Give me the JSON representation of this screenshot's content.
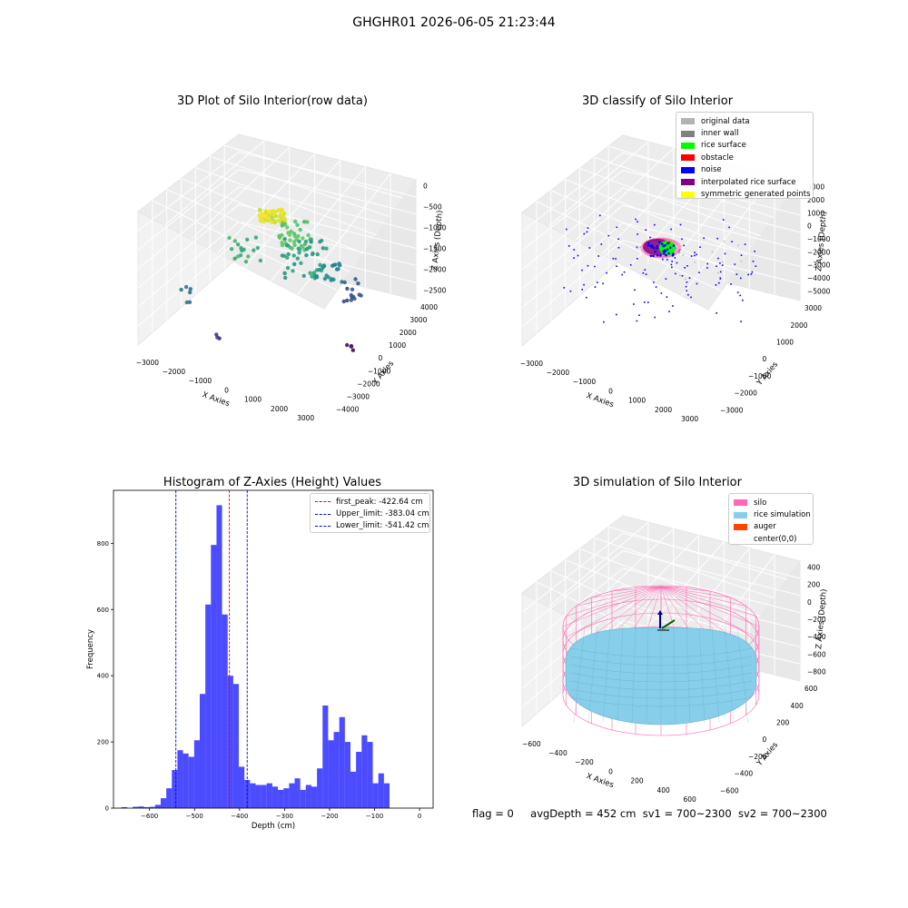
{
  "suptitle": "GHGHR01 2026-06-05 21:23:44",
  "footer": {
    "flag": "flag = 0",
    "avg_depth": "avgDepth = 452 cm",
    "sv1": "sv1 = 700~2300",
    "sv2": "sv2 = 700~2300"
  },
  "chart_data": [
    {
      "type": "scatter",
      "title": "3D Plot of Silo Interior(row data)",
      "xlabel": "X Axies",
      "ylabel": "Y Axies",
      "zlabel": "Z Axies (Depth)",
      "x_ticks": [
        "−3000",
        "−2000",
        "−1000",
        "0",
        "1000",
        "2000",
        "3000"
      ],
      "y_ticks": [
        "−4000",
        "−3000",
        "−2000",
        "−1000",
        "0",
        "1000",
        "2000",
        "3000",
        "4000"
      ],
      "z_ticks": [
        "−2500",
        "−2000",
        "−1500",
        "−1000",
        "−500",
        "0"
      ],
      "xlim": [
        -3500,
        3500
      ],
      "ylim": [
        -4200,
        4200
      ],
      "zlim": [
        -2900,
        150
      ],
      "colormap": "viridis"
    },
    {
      "type": "scatter",
      "title": "3D classify of Silo Interior",
      "xlabel": "X Axies",
      "ylabel": "Y Axies",
      "zlabel": "Z Axies (Depth)",
      "x_ticks": [
        "−3000",
        "−2000",
        "−1000",
        "0",
        "1000",
        "2000",
        "3000"
      ],
      "y_ticks": [
        "−3000",
        "−2000",
        "−1000",
        "0",
        "1000",
        "2000",
        "3000"
      ],
      "z_ticks": [
        "−5000",
        "−4000",
        "−3000",
        "−2000",
        "−1000",
        "0",
        "1000",
        "2000",
        "3000"
      ],
      "xlim": [
        -3500,
        3500
      ],
      "ylim": [
        -3500,
        3500
      ],
      "zlim": [
        -5000,
        3000
      ],
      "legend": [
        {
          "label": "original data",
          "color": "#b3b3b3"
        },
        {
          "label": "inner wall",
          "color": "#808080"
        },
        {
          "label": "rice surface",
          "color": "#00ff00"
        },
        {
          "label": "obstacle",
          "color": "#ff0000"
        },
        {
          "label": "noise",
          "color": "#0000ff"
        },
        {
          "label": "interpolated rice surface",
          "color": "#800080"
        },
        {
          "label": "symmetric generated points",
          "color": "#ffff00"
        }
      ]
    },
    {
      "type": "bar",
      "title": "Histogram of Z-Axies (Height) Values",
      "xlabel": "Depth (cm)",
      "ylabel": "Frequency",
      "xlim": [
        -680,
        30
      ],
      "ylim": [
        0,
        960
      ],
      "x_ticks": [
        -600,
        -500,
        -400,
        -300,
        -200,
        -100,
        0
      ],
      "y_ticks": [
        0,
        200,
        400,
        600,
        800
      ],
      "bar_color": "#0000ff",
      "bin_width": 12.4,
      "bin_start": -662,
      "values": [
        3,
        0,
        4,
        5,
        3,
        4,
        10,
        30,
        60,
        115,
        175,
        165,
        155,
        205,
        345,
        615,
        795,
        915,
        585,
        400,
        375,
        125,
        85,
        75,
        70,
        70,
        75,
        65,
        55,
        60,
        75,
        90,
        55,
        70,
        65,
        120,
        310,
        205,
        230,
        275,
        200,
        110,
        170,
        220,
        200,
        75,
        105,
        75
      ],
      "vlines": [
        {
          "label": "first_peak: -422.64 cm",
          "x": -422.64,
          "color": "#ff0000"
        },
        {
          "label": "Upper_limit: -383.04 cm",
          "x": -383.04,
          "color": "#0000ff"
        },
        {
          "label": "Lower_limit: -541.42 cm",
          "x": -541.42,
          "color": "#0000ff"
        }
      ]
    },
    {
      "type": "surface",
      "title": "3D simulation of Silo Interior",
      "xlabel": "X Axies",
      "ylabel": "Y Axies",
      "zlabel": "Z Axies (Depth)",
      "x_ticks": [
        "−600",
        "−400",
        "−200",
        "0",
        "200",
        "400",
        "600"
      ],
      "y_ticks": [
        "−600",
        "−400",
        "−200",
        "0",
        "200",
        "400",
        "600"
      ],
      "z_ticks": [
        "−800",
        "−600",
        "−400",
        "−200",
        "0",
        "200",
        "400"
      ],
      "xlim": [
        -700,
        700
      ],
      "ylim": [
        -700,
        700
      ],
      "zlim": [
        -900,
        500
      ],
      "legend": [
        {
          "label": "silo",
          "color": "#ff69b4"
        },
        {
          "label": "rice simulation",
          "color": "#87ceeb"
        },
        {
          "label": "auger",
          "color": "#ff4500"
        },
        {
          "label": "center(0,0)",
          "color": "#ffffff"
        }
      ]
    }
  ]
}
